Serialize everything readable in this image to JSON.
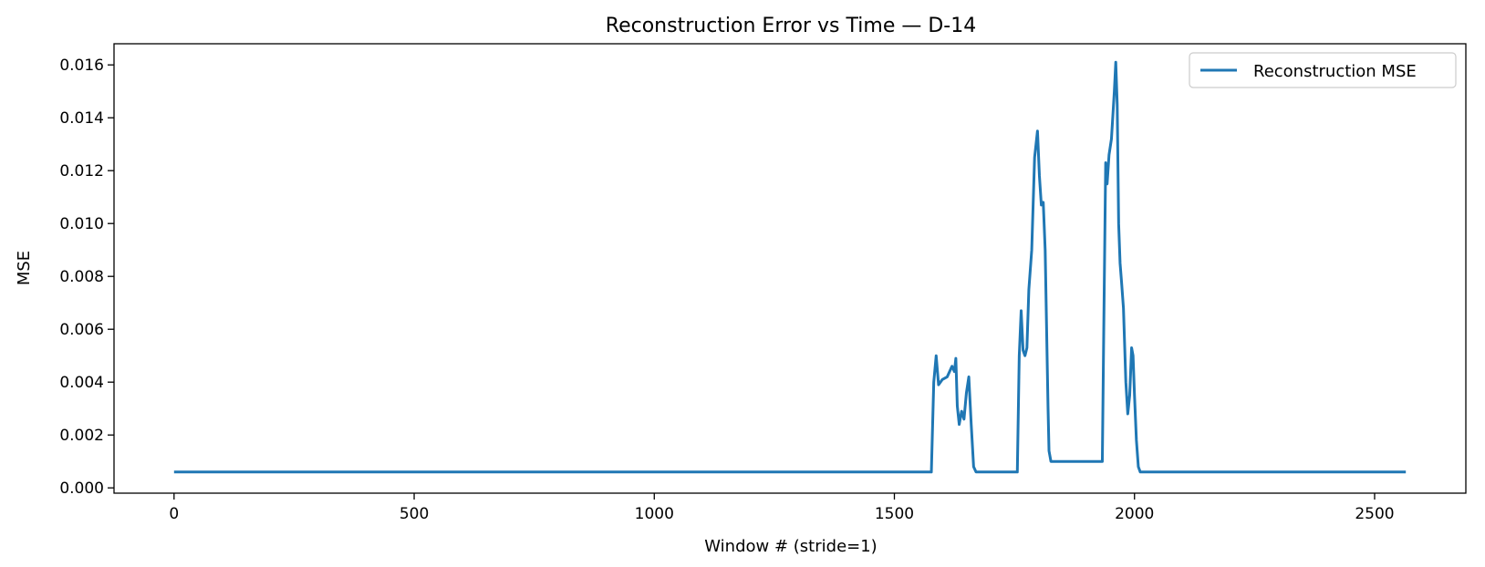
{
  "chart_data": {
    "type": "line",
    "title": "Reconstruction Error vs Time — D-14",
    "xlabel": "Window # (stride=1)",
    "ylabel": "MSE",
    "xlim": [
      -125,
      2690
    ],
    "ylim": [
      -0.0002,
      0.0168
    ],
    "xticks": [
      0,
      500,
      1000,
      1500,
      2000,
      2500
    ],
    "yticks": [
      0.0,
      0.002,
      0.004,
      0.006,
      0.008,
      0.01,
      0.012,
      0.014,
      0.016
    ],
    "xtick_labels": [
      "0",
      "500",
      "1000",
      "1500",
      "2000",
      "2500"
    ],
    "ytick_labels": [
      "0.000",
      "0.002",
      "0.004",
      "0.006",
      "0.008",
      "0.010",
      "0.012",
      "0.014",
      "0.016"
    ],
    "legend": {
      "position": "top-right",
      "entries": [
        "Reconstruction MSE"
      ]
    },
    "colors": {
      "line": "#1f77b4"
    },
    "series": [
      {
        "name": "Reconstruction MSE",
        "x": [
          0,
          500,
          1000,
          1570,
          1577,
          1582,
          1587,
          1592,
          1600,
          1610,
          1620,
          1625,
          1628,
          1631,
          1635,
          1640,
          1645,
          1650,
          1655,
          1660,
          1665,
          1670,
          1675,
          1700,
          1740,
          1756,
          1760,
          1764,
          1768,
          1772,
          1776,
          1780,
          1786,
          1792,
          1798,
          1802,
          1806,
          1810,
          1814,
          1818,
          1820,
          1822,
          1826,
          1830,
          1835,
          1840,
          1850,
          1880,
          1910,
          1933,
          1936,
          1940,
          1943,
          1947,
          1952,
          1958,
          1961,
          1964,
          1967,
          1970,
          1973,
          1977,
          1982,
          1986,
          1990,
          1994,
          1997,
          2000,
          2004,
          2008,
          2012,
          2016,
          2020,
          2050,
          2300,
          2565
        ],
        "y": [
          0.0006,
          0.0006,
          0.0006,
          0.0006,
          0.0006,
          0.004,
          0.005,
          0.0039,
          0.0041,
          0.0042,
          0.0046,
          0.0044,
          0.0049,
          0.0031,
          0.0024,
          0.0029,
          0.0026,
          0.0036,
          0.0042,
          0.0024,
          0.0008,
          0.0006,
          0.0006,
          0.0006,
          0.0006,
          0.0006,
          0.005,
          0.0067,
          0.0052,
          0.005,
          0.0053,
          0.0075,
          0.009,
          0.0125,
          0.0135,
          0.0118,
          0.0107,
          0.0108,
          0.009,
          0.005,
          0.003,
          0.0014,
          0.001,
          0.001,
          0.001,
          0.001,
          0.001,
          0.001,
          0.001,
          0.001,
          0.006,
          0.0123,
          0.0115,
          0.0126,
          0.0132,
          0.015,
          0.0161,
          0.0145,
          0.01,
          0.0085,
          0.0078,
          0.0068,
          0.004,
          0.0028,
          0.0035,
          0.0053,
          0.005,
          0.0035,
          0.0018,
          0.0008,
          0.0006,
          0.0006,
          0.0006,
          0.0006,
          0.0006,
          0.0006
        ]
      }
    ]
  }
}
